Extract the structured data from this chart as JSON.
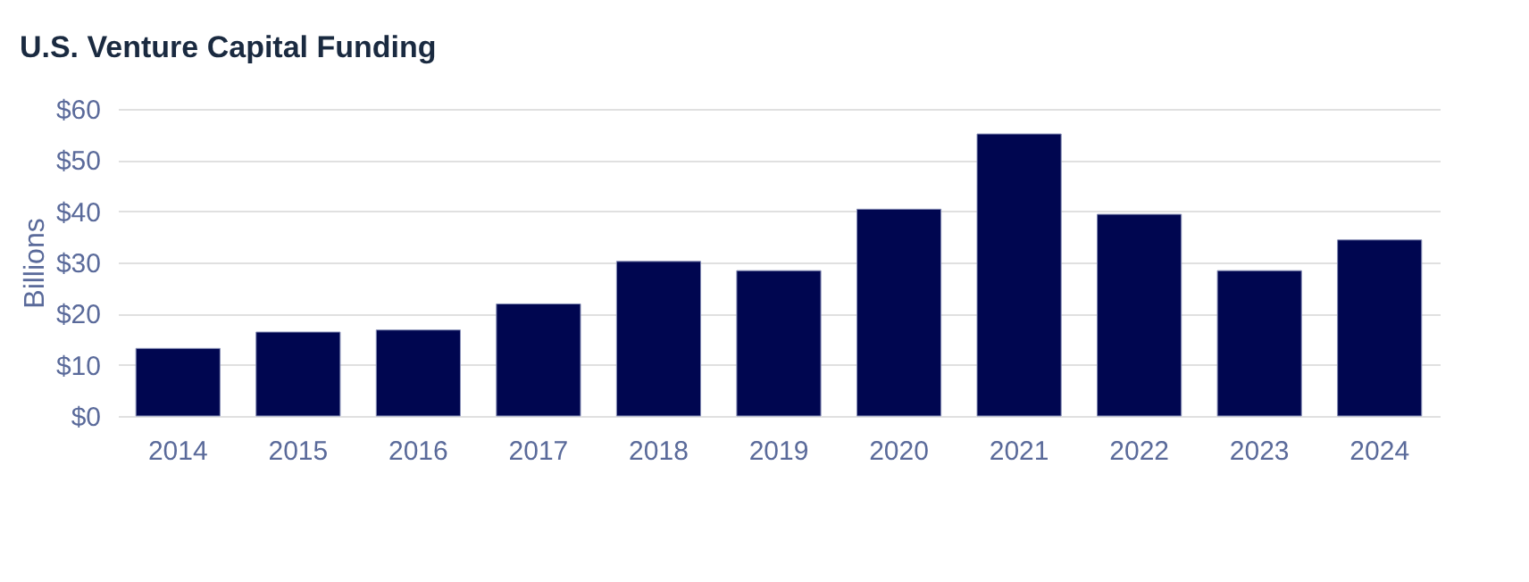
{
  "chart_data": {
    "type": "bar",
    "title": "U.S. Venture Capital Funding",
    "ylabel": "Billions",
    "categories": [
      "2014",
      "2015",
      "2016",
      "2017",
      "2018",
      "2019",
      "2020",
      "2021",
      "2022",
      "2023",
      "2024"
    ],
    "values": [
      13.2,
      16.4,
      16.8,
      21.9,
      30.2,
      28.4,
      40.4,
      55.1,
      39.4,
      28.4,
      34.4
    ],
    "color": "#000650",
    "ylim": [
      0,
      60
    ],
    "yticks": [
      {
        "value": 0,
        "label": "$0"
      },
      {
        "value": 10,
        "label": "$10"
      },
      {
        "value": 20,
        "label": "$20"
      },
      {
        "value": 30,
        "label": "$30"
      },
      {
        "value": 40,
        "label": "$40"
      },
      {
        "value": 50,
        "label": "$50"
      },
      {
        "value": 60,
        "label": "$60"
      }
    ],
    "grid": "y"
  }
}
